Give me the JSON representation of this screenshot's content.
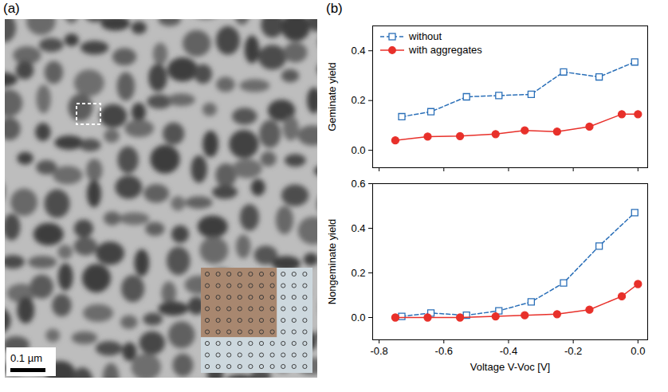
{
  "figure": {
    "panel_labels": [
      "(a)",
      "(b)"
    ],
    "image": {
      "scale_bar_label": "0.1 µm"
    }
  },
  "chart_data": [
    {
      "type": "line",
      "y_label": "Geminate yield",
      "xlim": [
        -0.82,
        0.03
      ],
      "xticks": [
        -0.8,
        -0.6,
        -0.4,
        -0.2,
        {
          "value": 0,
          "label": "0.0"
        }
      ],
      "ylim": [
        -0.07,
        0.5
      ],
      "yticks": [
        {
          "value": 0,
          "label": "0.0"
        },
        0.2,
        0.4
      ],
      "tick_labels": "y",
      "grid": false,
      "legend": "top-left",
      "series": [
        {
          "name": "without",
          "color": "#2a6fb8",
          "marker": "square_open",
          "line_style": "dashed",
          "x": [
            -0.73,
            -0.64,
            -0.53,
            -0.43,
            -0.33,
            -0.23,
            -0.12,
            -0.01
          ],
          "values": [
            0.135,
            0.155,
            0.215,
            0.22,
            0.225,
            0.315,
            0.295,
            0.355
          ]
        },
        {
          "name": "with aggregates",
          "color": "#e8302a",
          "marker": "circle",
          "line_style": "solid",
          "x": [
            -0.75,
            -0.65,
            -0.55,
            -0.44,
            -0.35,
            -0.25,
            -0.15,
            -0.05,
            0.0
          ],
          "values": [
            0.04,
            0.055,
            0.057,
            0.065,
            0.08,
            0.075,
            0.095,
            0.145,
            0.145
          ]
        }
      ]
    },
    {
      "type": "line",
      "y_label": "Nongeminate yield",
      "x_label": "Voltage V-Voc [V]",
      "xlim": [
        -0.82,
        0.03
      ],
      "xticks": [
        -0.8,
        -0.6,
        -0.4,
        -0.2,
        {
          "value": 0,
          "label": "0.0"
        }
      ],
      "ylim": [
        -0.1,
        0.6
      ],
      "yticks": [
        {
          "value": 0,
          "label": "0.0"
        },
        0.2,
        0.4,
        0.6
      ],
      "grid": false,
      "series": [
        {
          "name": "without",
          "color": "#2a6fb8",
          "marker": "square_open",
          "line_style": "dashed",
          "x": [
            -0.73,
            -0.64,
            -0.53,
            -0.43,
            -0.33,
            -0.23,
            -0.12,
            -0.01
          ],
          "values": [
            0.005,
            0.02,
            0.01,
            0.03,
            0.07,
            0.155,
            0.32,
            0.47
          ]
        },
        {
          "name": "with aggregates",
          "color": "#e8302a",
          "marker": "circle",
          "line_style": "solid",
          "x": [
            -0.75,
            -0.65,
            -0.55,
            -0.44,
            -0.35,
            -0.25,
            -0.15,
            -0.05,
            0.0
          ],
          "values": [
            0.0,
            0.0,
            0.0,
            0.005,
            0.01,
            0.015,
            0.035,
            0.095,
            0.15
          ]
        }
      ]
    }
  ]
}
